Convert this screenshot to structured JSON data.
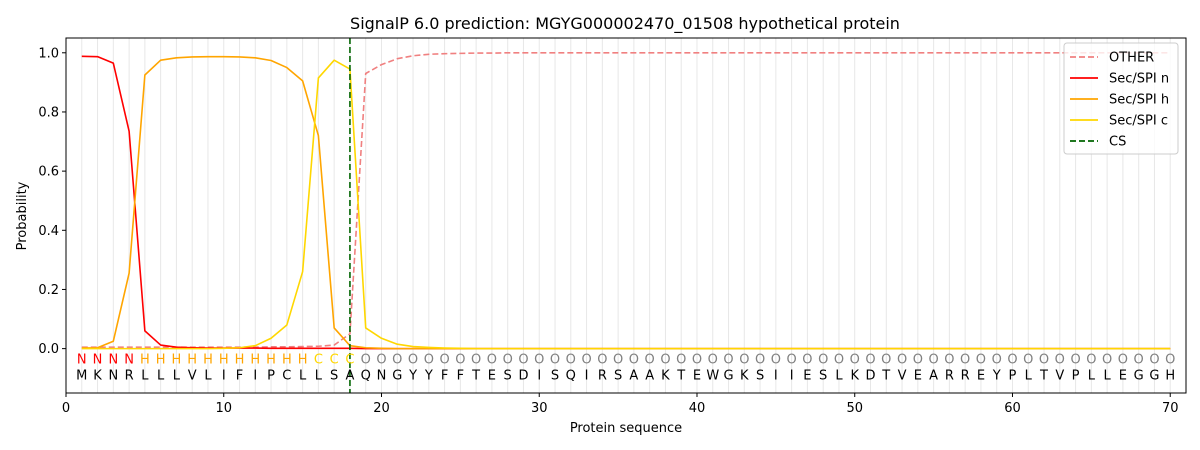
{
  "chart_data": {
    "type": "line",
    "title": "SignalP 6.0 prediction: MGYG000002470_01508 hypothetical protein",
    "xlabel": "Protein sequence",
    "ylabel": "Probability",
    "xlim": [
      0,
      71
    ],
    "ylim": [
      -0.15,
      1.05
    ],
    "xticks": [
      "0",
      "10",
      "20",
      "30",
      "40",
      "50",
      "60",
      "70"
    ],
    "yticks": [
      "0.0",
      "0.2",
      "0.4",
      "0.6",
      "0.8",
      "1.0"
    ],
    "legend_position": "top-right",
    "sequence": [
      "M",
      "K",
      "N",
      "R",
      "L",
      "L",
      "L",
      "V",
      "L",
      "I",
      "F",
      "I",
      "P",
      "C",
      "L",
      "L",
      "S",
      "A",
      "Q",
      "N",
      "G",
      "Y",
      "Y",
      "F",
      "F",
      "T",
      "E",
      "S",
      "D",
      "I",
      "S",
      "Q",
      "I",
      "R",
      "S",
      "A",
      "A",
      "K",
      "T",
      "E",
      "W",
      "G",
      "K",
      "S",
      "I",
      "I",
      "E",
      "S",
      "L",
      "K",
      "D",
      "T",
      "V",
      "E",
      "A",
      "R",
      "R",
      "E",
      "Y",
      "P",
      "L",
      "T",
      "V",
      "P",
      "L",
      "L",
      "E",
      "G",
      "G",
      "H"
    ],
    "region_labels": [
      "N",
      "N",
      "N",
      "N",
      "H",
      "H",
      "H",
      "H",
      "H",
      "H",
      "H",
      "H",
      "H",
      "H",
      "H",
      "C",
      "C",
      "C",
      "O",
      "O",
      "O",
      "O",
      "O",
      "O",
      "O",
      "O",
      "O",
      "O",
      "O",
      "O",
      "O",
      "O",
      "O",
      "O",
      "O",
      "O",
      "O",
      "O",
      "O",
      "O",
      "O",
      "O",
      "O",
      "O",
      "O",
      "O",
      "O",
      "O",
      "O",
      "O",
      "O",
      "O",
      "O",
      "O",
      "O",
      "O",
      "O",
      "O",
      "O",
      "O",
      "O",
      "O",
      "O",
      "O",
      "O",
      "O",
      "O",
      "O",
      "O",
      "O"
    ],
    "region_colors": {
      "N": "#ff0000",
      "H": "#ffa500",
      "C": "#ffd700",
      "O": "#808080"
    },
    "cleavage_site": 18,
    "series": [
      {
        "name": "OTHER",
        "color": "#f08080",
        "dashed": true,
        "values": [
          0.005,
          0.005,
          0.005,
          0.005,
          0.005,
          0.005,
          0.005,
          0.005,
          0.005,
          0.005,
          0.005,
          0.005,
          0.006,
          0.006,
          0.007,
          0.008,
          0.012,
          0.05,
          0.93,
          0.96,
          0.98,
          0.99,
          0.995,
          0.997,
          0.998,
          0.999,
          0.999,
          1.0,
          1.0,
          1.0,
          1.0,
          1.0,
          1.0,
          1.0,
          1.0,
          1.0,
          1.0,
          1.0,
          1.0,
          1.0,
          1.0,
          1.0,
          1.0,
          1.0,
          1.0,
          1.0,
          1.0,
          1.0,
          1.0,
          1.0,
          1.0,
          1.0,
          1.0,
          1.0,
          1.0,
          1.0,
          1.0,
          1.0,
          1.0,
          1.0,
          1.0,
          1.0,
          1.0,
          1.0,
          1.0,
          1.0,
          1.0,
          1.0,
          1.0,
          1.0
        ]
      },
      {
        "name": "Sec/SPI n",
        "color": "#ff0000",
        "dashed": false,
        "values": [
          0.988,
          0.987,
          0.965,
          0.735,
          0.06,
          0.012,
          0.005,
          0.003,
          0.002,
          0.002,
          0.002,
          0.002,
          0.001,
          0.001,
          0.001,
          0.001,
          0.001,
          0.001,
          0.0,
          0.0,
          0.0,
          0.0,
          0.0,
          0.0,
          0.0,
          0.0,
          0.0,
          0.0,
          0.0,
          0.0,
          0.0,
          0.0,
          0.0,
          0.0,
          0.0,
          0.0,
          0.0,
          0.0,
          0.0,
          0.0,
          0.0,
          0.0,
          0.0,
          0.0,
          0.0,
          0.0,
          0.0,
          0.0,
          0.0,
          0.0,
          0.0,
          0.0,
          0.0,
          0.0,
          0.0,
          0.0,
          0.0,
          0.0,
          0.0,
          0.0,
          0.0,
          0.0,
          0.0,
          0.0,
          0.0,
          0.0,
          0.0,
          0.0,
          0.0,
          0.0
        ]
      },
      {
        "name": "Sec/SPI h",
        "color": "#ffa500",
        "dashed": false,
        "values": [
          0.002,
          0.003,
          0.025,
          0.255,
          0.925,
          0.975,
          0.983,
          0.986,
          0.987,
          0.987,
          0.986,
          0.983,
          0.974,
          0.95,
          0.905,
          0.72,
          0.07,
          0.01,
          0.003,
          0.001,
          0.0,
          0.0,
          0.0,
          0.0,
          0.0,
          0.0,
          0.0,
          0.0,
          0.0,
          0.0,
          0.0,
          0.0,
          0.0,
          0.0,
          0.0,
          0.0,
          0.0,
          0.0,
          0.0,
          0.0,
          0.0,
          0.0,
          0.0,
          0.0,
          0.0,
          0.0,
          0.0,
          0.0,
          0.0,
          0.0,
          0.0,
          0.0,
          0.0,
          0.0,
          0.0,
          0.0,
          0.0,
          0.0,
          0.0,
          0.0,
          0.0,
          0.0,
          0.0,
          0.0,
          0.0,
          0.0,
          0.0,
          0.0,
          0.0,
          0.0
        ]
      },
      {
        "name": "Sec/SPI c",
        "color": "#ffd700",
        "dashed": false,
        "values": [
          0.0,
          0.0,
          0.0,
          0.0,
          0.0,
          0.0,
          0.0,
          0.0,
          0.0,
          0.001,
          0.003,
          0.01,
          0.035,
          0.08,
          0.26,
          0.915,
          0.975,
          0.945,
          0.07,
          0.035,
          0.015,
          0.007,
          0.004,
          0.002,
          0.001,
          0.0,
          0.0,
          0.0,
          0.0,
          0.0,
          0.0,
          0.0,
          0.0,
          0.0,
          0.0,
          0.0,
          0.0,
          0.0,
          0.0,
          0.0,
          0.0,
          0.0,
          0.0,
          0.0,
          0.0,
          0.0,
          0.0,
          0.0,
          0.0,
          0.0,
          0.0,
          0.0,
          0.0,
          0.0,
          0.0,
          0.0,
          0.0,
          0.0,
          0.0,
          0.0,
          0.0,
          0.0,
          0.0,
          0.0,
          0.0,
          0.0,
          0.0,
          0.0,
          0.0,
          0.0
        ]
      }
    ],
    "legend": [
      "OTHER",
      "Sec/SPI n",
      "Sec/SPI h",
      "Sec/SPI c",
      "CS"
    ],
    "cs_color": "#006400"
  }
}
